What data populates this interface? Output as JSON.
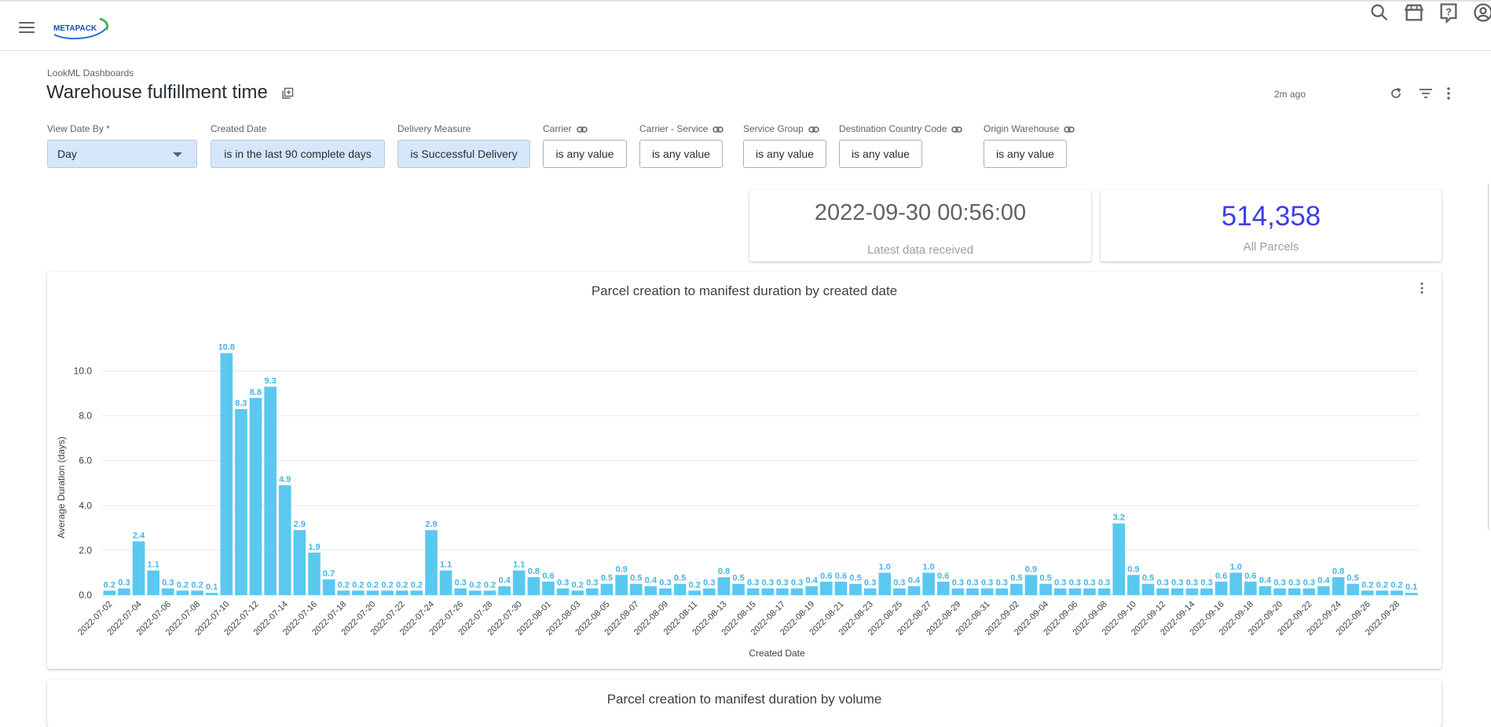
{
  "app": {
    "logo_text": "METAPACK"
  },
  "header": {
    "icons": [
      "search-icon",
      "marketplace-icon",
      "help-icon",
      "account-icon"
    ]
  },
  "dashboard": {
    "breadcrumb": "LookML Dashboards",
    "title": "Warehouse fulfillment time",
    "last_updated": "2m ago"
  },
  "filters": [
    {
      "label": "View Date By *",
      "value": "Day",
      "type": "select",
      "active": true,
      "linked": false
    },
    {
      "label": "Created Date",
      "value": "is in the last 90 complete days",
      "type": "chip",
      "active": true,
      "linked": false
    },
    {
      "label": "Delivery Measure",
      "value": "is Successful Delivery",
      "type": "chip",
      "active": true,
      "linked": false
    },
    {
      "label": "Carrier",
      "value": "is any value",
      "type": "chip",
      "active": false,
      "linked": true
    },
    {
      "label": "Carrier - Service",
      "value": "is any value",
      "type": "chip",
      "active": false,
      "linked": true
    },
    {
      "label": "Service Group",
      "value": "is any value",
      "type": "chip",
      "active": false,
      "linked": true
    },
    {
      "label": "Destination Country Code",
      "value": "is any value",
      "type": "chip",
      "active": false,
      "linked": true
    },
    {
      "label": "Origin Warehouse",
      "value": "is any value",
      "type": "chip",
      "active": false,
      "linked": true
    }
  ],
  "tiles": {
    "latest": {
      "value": "2022-09-30 00:56:00",
      "caption": "Latest data received"
    },
    "parcels": {
      "value": "514,358",
      "caption": "All Parcels",
      "color": "#3d3fe6"
    }
  },
  "chart_card": {
    "title": "Parcel creation to manifest duration by created date"
  },
  "second_card": {
    "title": "Parcel creation to manifest duration by volume"
  },
  "chart_data": {
    "type": "bar",
    "title": "Parcel creation to manifest duration by created date",
    "xlabel": "Created Date",
    "ylabel": "Average Duration (days)",
    "ylim": [
      0,
      11
    ],
    "yticks": [
      "0.0",
      "2.0",
      "4.0",
      "6.0",
      "8.0",
      "10.0"
    ],
    "bar_color": "#5bc8f0",
    "label_color": "#46b5e4",
    "grid": true,
    "start_date": "2022-07-02",
    "tick_every": 2,
    "values": [
      0.2,
      0.3,
      2.4,
      1.1,
      0.3,
      0.2,
      0.2,
      0.1,
      10.8,
      8.3,
      8.8,
      9.3,
      4.9,
      2.9,
      1.9,
      0.7,
      0.2,
      0.2,
      0.2,
      0.2,
      0.2,
      0.2,
      2.9,
      1.1,
      0.3,
      0.2,
      0.2,
      0.4,
      1.1,
      0.8,
      0.6,
      0.3,
      0.2,
      0.3,
      0.5,
      0.9,
      0.5,
      0.4,
      0.3,
      0.5,
      0.2,
      0.3,
      0.8,
      0.5,
      0.3,
      0.3,
      0.3,
      0.3,
      0.4,
      0.6,
      0.6,
      0.5,
      0.3,
      1.0,
      0.3,
      0.4,
      1.0,
      0.6,
      0.3,
      0.3,
      0.3,
      0.3,
      0.5,
      0.9,
      0.5,
      0.3,
      0.3,
      0.3,
      0.3,
      3.2,
      0.9,
      0.5,
      0.3,
      0.3,
      0.3,
      0.3,
      0.6,
      1.0,
      0.6,
      0.4,
      0.3,
      0.3,
      0.3,
      0.4,
      0.8,
      0.5,
      0.2,
      0.2,
      0.2,
      0.1
    ]
  }
}
